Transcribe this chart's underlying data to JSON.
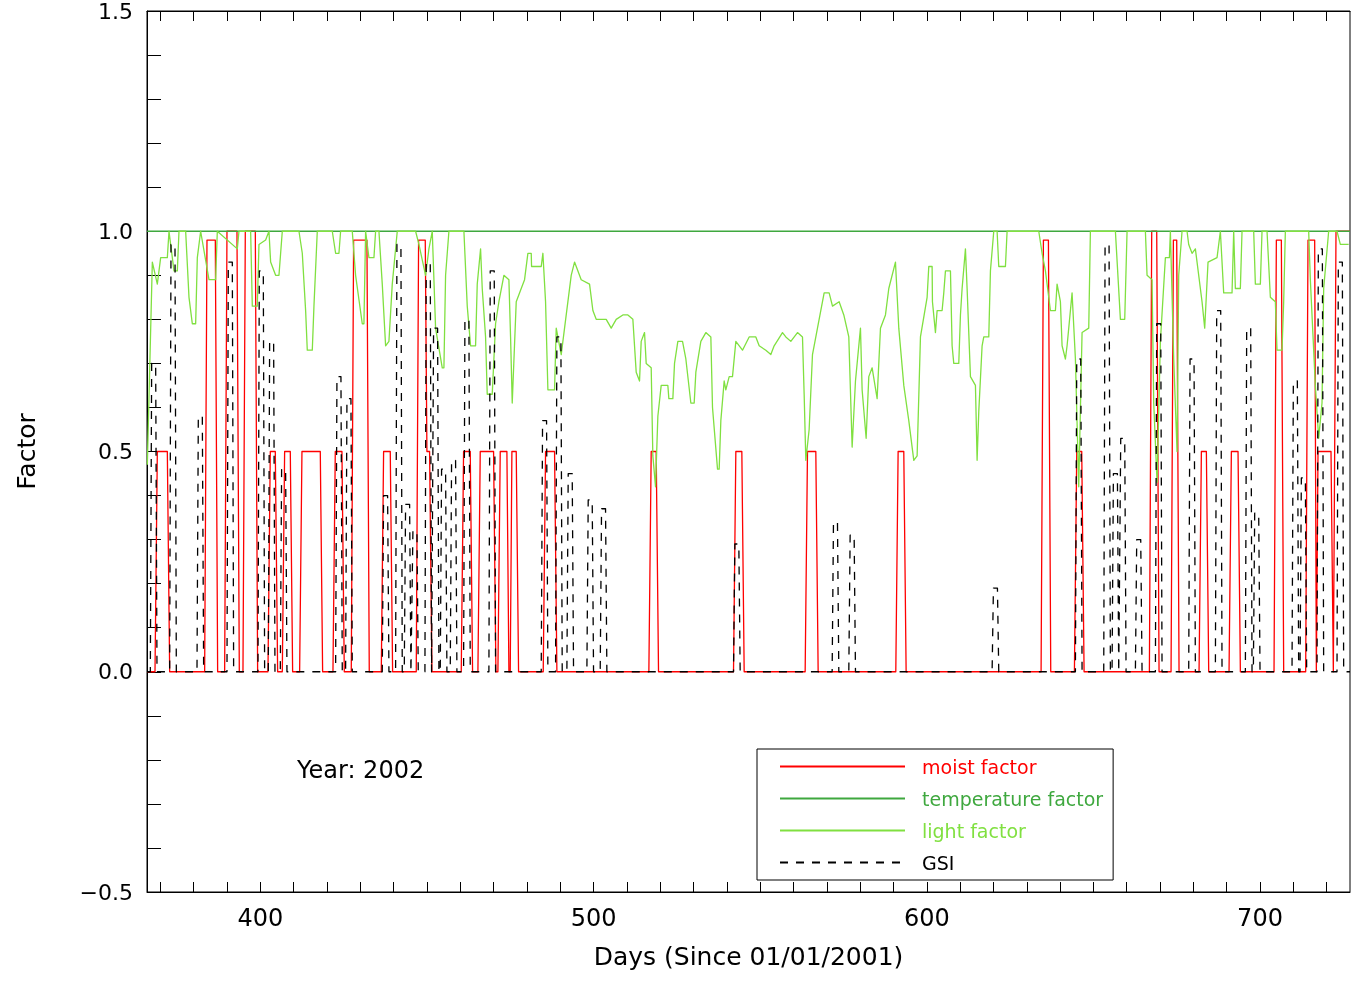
{
  "chart_data": {
    "type": "line",
    "xlabel": "Days (Since 01/01/2001)",
    "ylabel": "Factor",
    "xlim": [
      366,
      727
    ],
    "ylim": [
      -0.5,
      1.5
    ],
    "xticks": [
      {
        "value": 370,
        "label": null
      },
      {
        "value": 380,
        "label": null
      },
      {
        "value": 390,
        "label": null
      },
      400,
      {
        "value": 410,
        "label": null
      },
      {
        "value": 420,
        "label": null
      },
      {
        "value": 430,
        "label": null
      },
      {
        "value": 440,
        "label": null
      },
      {
        "value": 450,
        "label": null
      },
      {
        "value": 460,
        "label": null
      },
      {
        "value": 470,
        "label": null
      },
      {
        "value": 480,
        "label": null
      },
      {
        "value": 490,
        "label": null
      },
      500,
      {
        "value": 510,
        "label": null
      },
      {
        "value": 520,
        "label": null
      },
      {
        "value": 530,
        "label": null
      },
      {
        "value": 540,
        "label": null
      },
      {
        "value": 550,
        "label": null
      },
      {
        "value": 560,
        "label": null
      },
      {
        "value": 570,
        "label": null
      },
      {
        "value": 580,
        "label": null
      },
      {
        "value": 590,
        "label": null
      },
      600,
      {
        "value": 610,
        "label": null
      },
      {
        "value": 620,
        "label": null
      },
      {
        "value": 630,
        "label": null
      },
      {
        "value": 640,
        "label": null
      },
      {
        "value": 650,
        "label": null
      },
      {
        "value": 660,
        "label": null
      },
      {
        "value": 670,
        "label": null
      },
      {
        "value": 680,
        "label": null
      },
      {
        "value": 690,
        "label": null
      },
      700,
      {
        "value": 710,
        "label": null
      },
      {
        "value": 720,
        "label": null
      }
    ],
    "yticks": [
      {
        "value": -0.5,
        "label": "−0.5"
      },
      {
        "value": -0.4,
        "label": null
      },
      {
        "value": -0.3,
        "label": null
      },
      {
        "value": -0.2,
        "label": null
      },
      {
        "value": -0.1,
        "label": null
      },
      {
        "value": 0,
        "label": "0.0"
      },
      {
        "value": 0.1,
        "label": null
      },
      {
        "value": 0.2,
        "label": null
      },
      {
        "value": 0.3,
        "label": null
      },
      {
        "value": 0.4,
        "label": null
      },
      0.5,
      {
        "value": 0.6,
        "label": null
      },
      {
        "value": 0.7,
        "label": null
      },
      {
        "value": 0.8,
        "label": null
      },
      {
        "value": 0.9,
        "label": null
      },
      {
        "value": 1,
        "label": "1.0"
      },
      {
        "value": 1.1,
        "label": null
      },
      {
        "value": 1.2,
        "label": null
      },
      {
        "value": 1.3,
        "label": null
      },
      {
        "value": 1.4,
        "label": null
      },
      1.5
    ],
    "grid": false,
    "legend": "bottom right",
    "marker": "none",
    "annotations": [
      "Year: 2002"
    ],
    "series": [
      {
        "name": "moist factor",
        "color": "#ff0000",
        "line_style": "solid",
        "x": [
          366,
          368.4,
          369.1,
          372.1,
          372.8,
          383.3,
          384,
          386.5,
          387.2,
          389.3,
          390,
          393,
          393.7,
          394.8,
          395.5,
          398.5,
          399.2,
          402.3,
          403,
          404.5,
          405.2,
          406.6,
          407.3,
          409,
          409.7,
          411.8,
          412.5,
          418,
          418.7,
          421.8,
          422.5,
          424.5,
          425.2,
          427.3,
          428,
          432,
          432.7,
          436.3,
          437,
          439,
          439.7,
          446.8,
          447.5,
          449.5,
          450,
          450.8,
          451.5,
          460.3,
          461,
          463,
          463.7,
          465.3,
          466,
          470,
          470.7,
          471.3,
          472,
          474,
          474.6,
          475,
          475.5,
          476.8,
          477.5,
          484.9,
          485.6,
          488.3,
          489,
          516.6,
          517.3,
          518.8,
          519.5,
          542,
          542.7,
          544.5,
          545.2,
          563.5,
          564.2,
          566.7,
          567.4,
          590.7,
          591.4,
          593.1,
          593.8,
          634.3,
          635,
          636.5,
          637.2,
          644.3,
          645,
          646.5,
          647.2,
          666.8,
          667.5,
          669,
          669.7,
          673.3,
          674,
          675,
          675.7,
          681.7,
          682.4,
          683.9,
          684.6,
          690.7,
          691.4,
          693.4,
          694.1,
          704.2,
          704.9,
          706.4,
          707.1,
          713.7,
          714.4,
          716.4,
          716.9,
          717.4,
          721.3,
          722,
          722.8,
          727
        ],
        "values": [
          0,
          0,
          0.5,
          0.5,
          0,
          0,
          0.98,
          0.98,
          0,
          0,
          1,
          1,
          0,
          0,
          1,
          1,
          0,
          0,
          0.5,
          0.5,
          0,
          0,
          0.5,
          0.5,
          0,
          0,
          0.5,
          0.5,
          0,
          0,
          0.5,
          0.5,
          0,
          0,
          0.98,
          0.98,
          0,
          0,
          0.5,
          0.5,
          0,
          0,
          0.98,
          0.98,
          0.5,
          0.5,
          0,
          0,
          0.5,
          0.5,
          0,
          0,
          0.5,
          0.5,
          0,
          0,
          0.5,
          0.5,
          0,
          0,
          0.5,
          0.5,
          0,
          0,
          0.5,
          0.5,
          0,
          0,
          0.5,
          0.5,
          0,
          0,
          0.5,
          0.5,
          0,
          0,
          0.5,
          0.5,
          0,
          0,
          0.5,
          0.5,
          0,
          0,
          0.98,
          0.98,
          0,
          0,
          0.5,
          0.5,
          0,
          0,
          1,
          1,
          0,
          0,
          0.98,
          0.98,
          0,
          0,
          0.5,
          0.5,
          0,
          0,
          0.5,
          0.5,
          0,
          0,
          0.98,
          0.98,
          0,
          0,
          0.98,
          0.98,
          0,
          0.5,
          0.5,
          0,
          1,
          1
        ]
      },
      {
        "name": "temperature factor",
        "color": "#3fa83f",
        "line_style": "solid",
        "x": [
          366,
          727
        ],
        "values": [
          1,
          1
        ]
      },
      {
        "name": "light factor",
        "color": "#80e040",
        "line_style": "solid",
        "x": [
          366.1,
          367.6,
          369.1,
          370.1,
          372.1,
          372.6,
          374.1,
          375.1,
          375.6,
          377.6,
          378.6,
          379.6,
          380.6,
          381.1,
          382.1,
          384.6,
          386.6,
          387.1,
          393.1,
          393.6,
          397.1,
          397.6,
          399.1,
          399.6,
          401.6,
          402.6,
          403.1,
          404.6,
          405.6,
          406.6,
          411.6,
          412.6,
          413.6,
          414.1,
          415.6,
          416.1,
          417.1,
          421.6,
          422.6,
          423.6,
          424.1,
          427.6,
          428.6,
          430.6,
          431.1,
          431.6,
          432.6,
          434.1,
          434.6,
          435.6,
          436.6,
          437.6,
          438.6,
          439.6,
          441.1,
          446.6,
          447.6,
          449.6,
          450.6,
          451.6,
          452.6,
          454.6,
          455.1,
          455.6,
          456.6,
          461.1,
          462.1,
          463.1,
          464.6,
          465.1,
          466.1,
          466.6,
          467.6,
          468.1,
          469.6,
          470.6,
          471.6,
          473.1,
          474.6,
          475.1,
          475.6,
          476.8,
          478.3,
          479.3,
          480.3,
          481.3,
          481.4,
          484.3,
          484.8,
          485.6,
          486.3,
          488.3,
          488.8,
          490.3,
          491.8,
          493.3,
          494.3,
          496.3,
          498.8,
          499.8,
          500.8,
          503.8,
          505.3,
          506.8,
          508.8,
          510.3,
          511.8,
          512.8,
          513.8,
          514.3,
          515.3,
          515.8,
          517.3,
          517.8,
          518.6,
          519.3,
          520.3,
          522.3,
          522.6,
          523.8,
          524.3,
          525.3,
          526.7,
          527.7,
          529.2,
          530.2,
          530.7,
          532.2,
          533.7,
          535.2,
          535.7,
          537.2,
          537.7,
          538.2,
          539.2,
          539.7,
          540.7,
          541.7,
          542.7,
          544.7,
          546.7,
          548.7,
          549.7,
          551.7,
          553.2,
          554.2,
          556.7,
          557.7,
          559.2,
          561.2,
          562.7,
          563.2,
          563.7,
          564.7,
          565.7,
          567.2,
          569.2,
          570.7,
          571.7,
          573.7,
          575.1,
          576.6,
          577.6,
          578.6,
          580.1,
          580.6,
          581.8,
          582.6,
          583.6,
          585.1,
          586.1,
          587.6,
          588.6,
          590.6,
          591.6,
          593.1,
          594.6,
          596.1,
          597.1,
          598.1,
          600.1,
          600.6,
          601.6,
          601.7,
          602.6,
          603.1,
          604.6,
          605.1,
          605.6,
          607.1,
          607.6,
          608.1,
          609.6,
          610.1,
          610.6,
          611.6,
          612.1,
          613.1,
          614.6,
          615.1,
          615.6,
          616.6,
          617.1,
          618.6,
          619.1,
          620.1,
          621.1,
          621.6,
          623.6,
          624.1,
          633.6,
          634.6,
          635.6,
          637.1,
          638.6,
          639.1,
          640.1,
          640.6,
          641.6,
          642.1,
          643.6,
          644.6,
          645.6,
          646.6,
          648.6,
          649.1,
          656.6,
          658.1,
          659.4,
          660.1,
          665.6,
          666.1,
          667.6,
          668.1,
          669.1,
          670.1,
          671.6,
          672.8,
          673.1,
          674.1,
          675.1,
          675.6,
          676.6,
          678.1,
          678.6,
          679.6,
          680.6,
          682.6,
          683.4,
          684.4,
          687.1,
          688.1,
          689.1,
          691.6,
          692.1,
          692.6,
          694.1,
          694.6,
          698.1,
          698.6,
          700.1,
          700.6,
          702.1,
          703.1,
          704.6,
          705.1,
          706.6,
          707.1,
          707.6,
          714.6,
          715.1,
          716.6,
          717.6,
          718.6,
          719.1,
          720.6,
          723.1,
          724.1,
          726.6
        ],
        "values": [
          0.47,
          0.93,
          0.88,
          0.94,
          0.94,
          1,
          0.91,
          0.91,
          1,
          1,
          0.85,
          0.79,
          0.79,
          0.94,
          1,
          0.89,
          0.89,
          1,
          0.96,
          1,
          1,
          0.83,
          0.83,
          0.97,
          0.98,
          1,
          0.93,
          0.9,
          0.9,
          1,
          1,
          0.95,
          0.82,
          0.73,
          0.73,
          0.83,
          1,
          1,
          0.95,
          0.95,
          1,
          1,
          0.9,
          0.79,
          0.79,
          1,
          0.94,
          0.94,
          1,
          1,
          0.88,
          0.74,
          0.75,
          0.88,
          1,
          1,
          0.97,
          0.9,
          0.96,
          1,
          0.78,
          0.69,
          0.69,
          0.9,
          1,
          1,
          0.83,
          0.74,
          0.74,
          0.88,
          0.96,
          0.87,
          0.76,
          0.63,
          0.63,
          0.79,
          0.84,
          0.9,
          0.89,
          0.76,
          0.61,
          0.84,
          0.87,
          0.89,
          0.95,
          0.95,
          0.92,
          0.92,
          0.95,
          0.84,
          0.64,
          0.64,
          0.78,
          0.72,
          0.81,
          0.9,
          0.93,
          0.89,
          0.88,
          0.82,
          0.8,
          0.8,
          0.78,
          0.8,
          0.81,
          0.81,
          0.8,
          0.68,
          0.66,
          0.75,
          0.77,
          0.7,
          0.69,
          0.49,
          0.42,
          0.58,
          0.65,
          0.65,
          0.62,
          0.62,
          0.7,
          0.75,
          0.75,
          0.71,
          0.61,
          0.61,
          0.68,
          0.75,
          0.77,
          0.76,
          0.6,
          0.46,
          0.46,
          0.57,
          0.66,
          0.64,
          0.67,
          0.67,
          0.75,
          0.73,
          0.76,
          0.76,
          0.74,
          0.73,
          0.72,
          0.74,
          0.77,
          0.76,
          0.75,
          0.77,
          0.76,
          0.63,
          0.48,
          0.55,
          0.72,
          0.78,
          0.86,
          0.86,
          0.83,
          0.84,
          0.81,
          0.76,
          0.51,
          0.66,
          0.78,
          0.64,
          0.53,
          0.67,
          0.69,
          0.62,
          0.78,
          0.81,
          0.87,
          0.93,
          0.78,
          0.65,
          0.57,
          0.48,
          0.49,
          0.76,
          0.85,
          0.92,
          0.92,
          0.84,
          0.77,
          0.82,
          0.82,
          0.86,
          0.91,
          0.91,
          0.74,
          0.7,
          0.7,
          0.81,
          0.87,
          0.96,
          0.87,
          0.67,
          0.65,
          0.48,
          0.59,
          0.74,
          0.76,
          0.76,
          0.91,
          1,
          1,
          0.92,
          0.92,
          1,
          1,
          0.95,
          0.91,
          0.82,
          0.82,
          0.88,
          0.84,
          0.74,
          0.71,
          0.74,
          0.86,
          0.71,
          0.42,
          0.77,
          0.78,
          1,
          1,
          0.8,
          0.8,
          1,
          1,
          0.9,
          0.89,
          0.61,
          0.43,
          0.75,
          0.94,
          0.94,
          1,
          0.71,
          0.5,
          0.9,
          1,
          1,
          0.97,
          0.95,
          0.96,
          0.84,
          0.78,
          0.93,
          0.94,
          1,
          0.86,
          0.86,
          1,
          0.87,
          0.87,
          1,
          1,
          0.88,
          0.88,
          1,
          1,
          0.85,
          0.84,
          0.73,
          0.73,
          0.84,
          1,
          1,
          0.89,
          0.65,
          0.53,
          0.61,
          0.87,
          1,
          1,
          0.97,
          0.97
        ]
      },
      {
        "name": "GSI",
        "color": "#000000",
        "line_style": "dashed",
        "x": [
          366,
          367,
          367.4,
          368.6,
          369,
          372.8,
          373.2,
          374.4,
          374.8,
          381,
          381.4,
          382.6,
          383,
          390,
          390.4,
          391.6,
          392,
          399.3,
          399.7,
          400.9,
          401.3,
          402.4,
          402.8,
          404,
          404.4,
          406,
          406.4,
          407.6,
          408,
          422.6,
          423,
          424.2,
          424.6,
          425.6,
          426,
          427.2,
          427.6,
          436.6,
          437,
          438.2,
          438.6,
          440.6,
          441,
          442.2,
          442.6,
          443.2,
          443.6,
          444.8,
          445.2,
          445.4,
          445.8,
          447,
          447.4,
          449.4,
          449.8,
          451,
          451.4,
          451.6,
          452,
          453.2,
          453.6,
          454,
          454.4,
          455.6,
          456,
          457,
          457.4,
          458.6,
          459,
          461,
          461.4,
          462.6,
          463,
          468.6,
          469,
          470.2,
          470.6,
          484.3,
          484.7,
          485.9,
          486.3,
          488.6,
          489,
          490.2,
          490.6,
          492,
          492.4,
          493.6,
          494,
          498,
          498.4,
          499.6,
          500,
          502,
          502.4,
          503.6,
          504,
          542,
          542.4,
          543.6,
          544,
          571.6,
          572,
          573.2,
          573.6,
          576.6,
          577,
          578.2,
          578.6,
          619.6,
          620,
          621.2,
          621.6,
          644.6,
          645,
          646.2,
          646.6,
          653.1,
          653.5,
          654.7,
          655.1,
          655.6,
          656,
          657.2,
          657.6,
          657.8,
          658.2,
          659.4,
          659.8,
          662.6,
          663,
          664.2,
          664.6,
          668.6,
          669,
          670.2,
          670.6,
          678.6,
          679,
          680.2,
          680.6,
          686.6,
          687,
          688.2,
          688.6,
          695.6,
          696,
          697.2,
          697.6,
          698,
          698.4,
          699.6,
          700,
          709.6,
          710,
          711.2,
          711.6,
          712,
          712.4,
          713.6,
          714,
          717.1,
          717.5,
          718.7,
          719.1,
          723.1,
          723.5,
          724.7,
          725.1,
          727
        ],
        "values": [
          0,
          0,
          0.7,
          0.7,
          0,
          0,
          0.97,
          0.97,
          0,
          0,
          0.58,
          0.58,
          0,
          0,
          0.93,
          0.93,
          0,
          0,
          0.91,
          0.91,
          0,
          0,
          0.75,
          0.75,
          0,
          0,
          0.46,
          0.46,
          0,
          0,
          0.67,
          0.67,
          0,
          0,
          0.62,
          0.62,
          0,
          0,
          0.4,
          0.4,
          0,
          0,
          0.97,
          0.97,
          0,
          0,
          0.38,
          0.38,
          0,
          0,
          0.32,
          0.32,
          0,
          0,
          0.93,
          0.93,
          0,
          0,
          0.78,
          0.78,
          0,
          0,
          0.46,
          0.46,
          0,
          0,
          0.48,
          0.48,
          0,
          0,
          0.8,
          0.8,
          0,
          0,
          0.91,
          0.91,
          0,
          0,
          0.57,
          0.57,
          0,
          0,
          0.76,
          0.76,
          0,
          0,
          0.45,
          0.45,
          0,
          0,
          0.39,
          0.39,
          0,
          0,
          0.37,
          0.37,
          0,
          0,
          0.29,
          0.29,
          0,
          0,
          0.34,
          0.34,
          0,
          0,
          0.31,
          0.31,
          0,
          0,
          0.19,
          0.19,
          0,
          0,
          0.71,
          0.71,
          0,
          0,
          0.97,
          0.97,
          0,
          0,
          0.45,
          0.45,
          0,
          0,
          0.53,
          0.53,
          0,
          0,
          0.3,
          0.3,
          0,
          0,
          0.79,
          0.79,
          0,
          0,
          0.71,
          0.71,
          0,
          0,
          0.82,
          0.82,
          0,
          0,
          0.78,
          0.78,
          0,
          0,
          0.36,
          0.36,
          0,
          0,
          0.66,
          0.66,
          0,
          0,
          0.44,
          0.44,
          0,
          0,
          0.96,
          0.96,
          0,
          0,
          0.93,
          0.93,
          0,
          0
        ]
      }
    ]
  }
}
